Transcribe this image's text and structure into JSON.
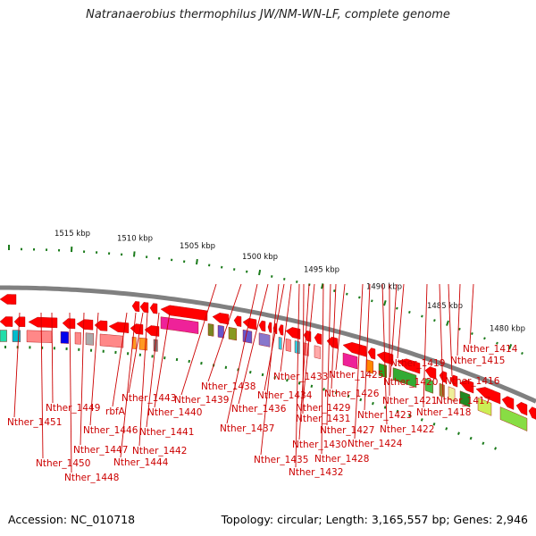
{
  "title": "Natranaerobius thermophilus JW/NM-WN-LF, complete genome",
  "footer": {
    "accession": "Accession: NC_010718",
    "topology": "Topology: circular; Length: 3,165,557 bp; Genes: 2,946"
  },
  "kbp_labels": [
    "1480 kbp",
    "1485 kbp",
    "1490 kbp",
    "1495 kbp",
    "1500 kbp",
    "1505 kbp",
    "1510 kbp",
    "1515 kbp"
  ],
  "gene_labels": [
    "Nther_1414",
    "Nther_1415",
    "Nther_1416",
    "Nther_1417",
    "Nther_1418",
    "Nther_1419",
    "Nther_1420",
    "Nther_1421",
    "Nther_1422",
    "Nther_1423",
    "Nther_1424",
    "Nther_1425",
    "Nther_1426",
    "Nther_1427",
    "Nther_1428",
    "Nther_1429",
    "Nther_1430",
    "Nther_1431",
    "Nther_1432",
    "Nther_1433",
    "Nther_1434",
    "Nther_1435",
    "Nther_1436",
    "Nther_1437",
    "Nther_1438",
    "Nther_1439",
    "Nther_1440",
    "Nther_1441",
    "Nther_1442",
    "Nther_1443",
    "Nther_1444",
    "rbfA",
    "Nther_1446",
    "Nther_1447",
    "Nther_1448",
    "Nther_1449",
    "Nther_1450",
    "Nther_1451"
  ],
  "colors": {
    "gene": "#ff0000",
    "label": "#cc0000",
    "tick": "#1a7a1a",
    "backbone": "#808080"
  }
}
